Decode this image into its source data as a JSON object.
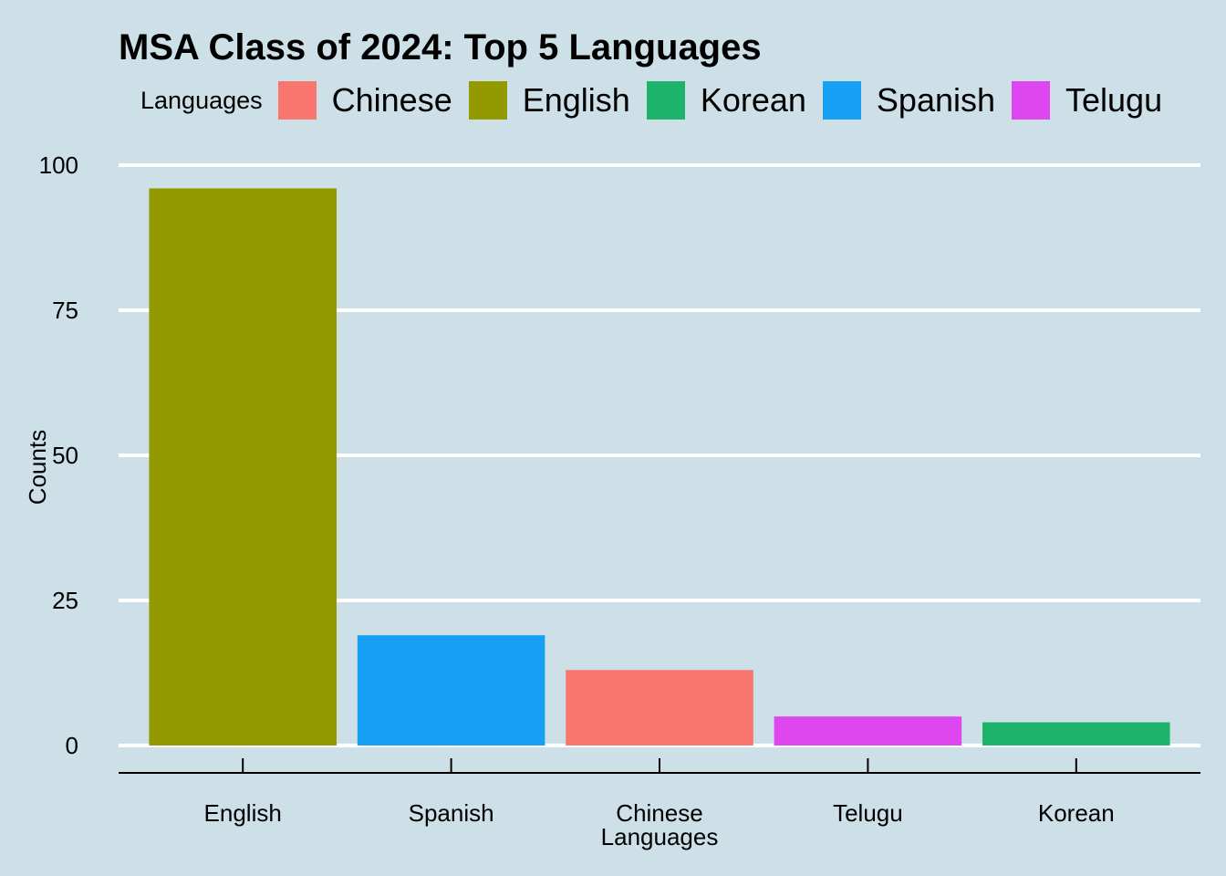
{
  "chart_data": {
    "type": "bar",
    "title": "MSA Class of 2024: Top 5 Languages",
    "xlabel": "Languages",
    "ylabel": "Counts",
    "categories": [
      "English",
      "Spanish",
      "Chinese",
      "Telugu",
      "Korean"
    ],
    "values": [
      96,
      19,
      13,
      5,
      4
    ],
    "ylim": [
      0,
      100
    ],
    "yticks": [
      0,
      25,
      50,
      75,
      100
    ],
    "grid": true,
    "legend": {
      "title": "Languages",
      "placement": "top",
      "entries": [
        "Chinese",
        "English",
        "Korean",
        "Spanish",
        "Telugu"
      ]
    },
    "colors": {
      "Chinese": "#F8766D",
      "English": "#939A00",
      "Korean": "#1BB46A",
      "Spanish": "#17A0F3",
      "Telugu": "#DE47EF"
    },
    "background": "#cde0e7"
  }
}
